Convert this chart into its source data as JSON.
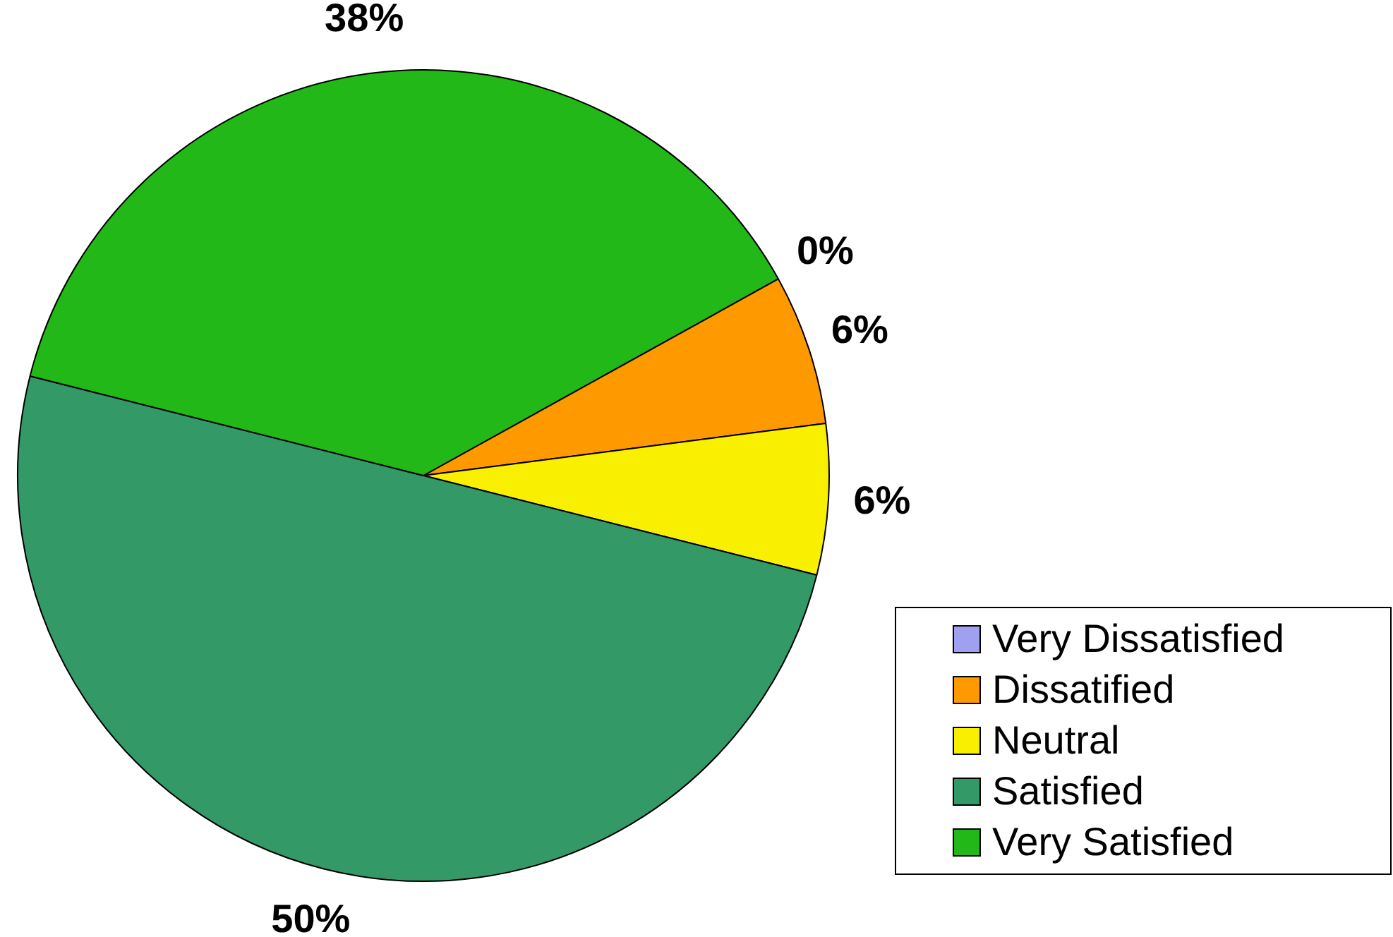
{
  "chart_data": {
    "type": "pie",
    "categories": [
      "Very Dissatisfied",
      "Dissatified",
      "Neutral",
      "Satisfied",
      "Very Satisfied"
    ],
    "values": [
      0,
      6,
      6,
      50,
      38
    ],
    "colors": [
      "#a0a0f0",
      "#ff9900",
      "#f8f000",
      "#339966",
      "#22b818"
    ],
    "value_labels": [
      "0%",
      "6%",
      "6%",
      "50%",
      "38%"
    ],
    "legend": "bottom right"
  }
}
